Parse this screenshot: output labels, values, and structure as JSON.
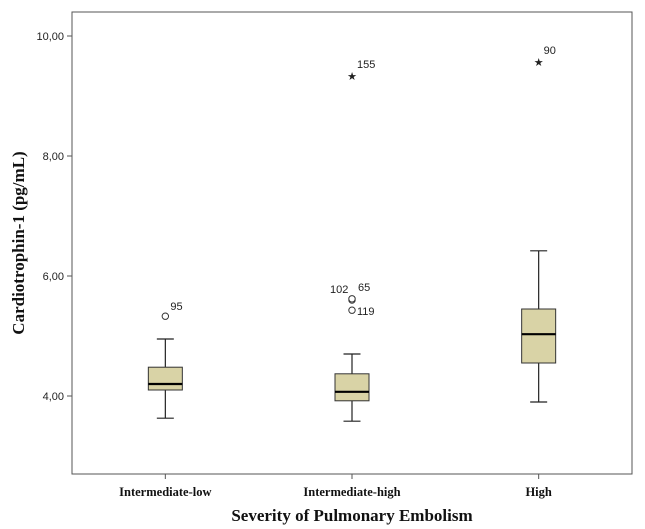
{
  "chart_data": {
    "type": "boxplot",
    "xlabel": "Severity of Pulmonary Embolism",
    "ylabel": "Cardiotrophin-1 (pg/mL)",
    "ylim": [
      2.7,
      10.4
    ],
    "yticks": [
      "4,00",
      "6,00",
      "8,00",
      "10,00"
    ],
    "ytick_values": [
      4,
      6,
      8,
      10
    ],
    "categories": [
      "Intermediate-low",
      "Intermediate-high",
      "High"
    ],
    "box_color": "#d9d3a6",
    "boxes": [
      {
        "category": "Intermediate-low",
        "whisker_low": 3.63,
        "q1": 4.1,
        "median": 4.2,
        "q3": 4.48,
        "whisker_high": 4.95,
        "outliers": [
          {
            "value": 5.33,
            "marker": "circle",
            "label": "95"
          }
        ]
      },
      {
        "category": "Intermediate-high",
        "whisker_low": 3.58,
        "q1": 3.92,
        "median": 4.07,
        "q3": 4.37,
        "whisker_high": 4.7,
        "outliers": [
          {
            "value": 5.6,
            "marker": "circle",
            "label": "102"
          },
          {
            "value": 5.62,
            "marker": "circle",
            "label": "65"
          },
          {
            "value": 5.43,
            "marker": "circle",
            "label": "119"
          },
          {
            "value": 9.33,
            "marker": "star",
            "label": "155"
          }
        ]
      },
      {
        "category": "High",
        "whisker_low": 3.9,
        "q1": 4.55,
        "median": 5.03,
        "q3": 5.45,
        "whisker_high": 6.42,
        "outliers": [
          {
            "value": 9.57,
            "marker": "star",
            "label": "90"
          }
        ]
      }
    ]
  }
}
